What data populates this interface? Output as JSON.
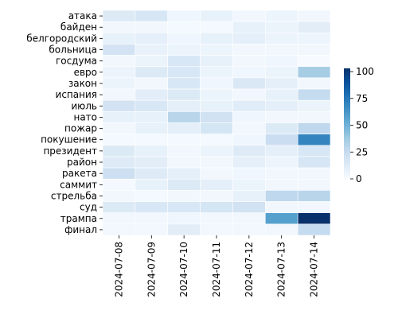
{
  "chart_data": {
    "type": "heatmap",
    "title": "",
    "xlabel": "",
    "ylabel": "",
    "x": [
      "2024-07-08",
      "2024-07-09",
      "2024-07-10",
      "2024-07-11",
      "2024-07-12",
      "2024-07-13",
      "2024-07-14"
    ],
    "y": [
      "атака",
      "байден",
      "белгородский",
      "больница",
      "госдума",
      "евро",
      "закон",
      "испания",
      "июль",
      "нато",
      "пожар",
      "покушение",
      "президент",
      "район",
      "ракета",
      "саммит",
      "стрельба",
      "суд",
      "трампа",
      "финал"
    ],
    "values": [
      [
        14,
        17,
        4,
        8,
        3,
        5,
        3
      ],
      [
        3,
        3,
        2,
        2,
        8,
        6,
        11
      ],
      [
        8,
        10,
        4,
        8,
        10,
        6,
        5
      ],
      [
        19,
        7,
        6,
        5,
        3,
        3,
        3
      ],
      [
        3,
        6,
        16,
        8,
        3,
        4,
        0
      ],
      [
        6,
        14,
        16,
        6,
        4,
        6,
        36
      ],
      [
        6,
        3,
        16,
        4,
        15,
        10,
        3
      ],
      [
        3,
        11,
        14,
        6,
        3,
        8,
        26
      ],
      [
        19,
        16,
        10,
        8,
        12,
        10,
        6
      ],
      [
        8,
        8,
        30,
        20,
        4,
        3,
        3
      ],
      [
        3,
        8,
        10,
        18,
        3,
        14,
        28
      ],
      [
        2,
        2,
        2,
        2,
        4,
        23,
        70
      ],
      [
        14,
        8,
        3,
        6,
        13,
        10,
        16
      ],
      [
        13,
        11,
        3,
        3,
        10,
        5,
        17
      ],
      [
        22,
        13,
        10,
        3,
        4,
        3,
        3
      ],
      [
        2,
        8,
        14,
        10,
        6,
        3,
        3
      ],
      [
        3,
        2,
        3,
        3,
        8,
        28,
        30
      ],
      [
        14,
        16,
        16,
        18,
        20,
        3,
        3
      ],
      [
        3,
        3,
        4,
        3,
        3,
        58,
        103
      ],
      [
        3,
        3,
        11,
        3,
        3,
        3,
        26
      ]
    ],
    "colorbar": {
      "min": 0,
      "max": 103,
      "ticks": [
        0,
        25,
        50,
        75,
        100
      ]
    },
    "colormap": [
      "#f7fbff",
      "#deebf7",
      "#c6dbef",
      "#9ecae1",
      "#6baed6",
      "#4292c6",
      "#2171b5",
      "#08519c",
      "#08306b"
    ],
    "grid": false,
    "legend": "colorbar-right"
  }
}
